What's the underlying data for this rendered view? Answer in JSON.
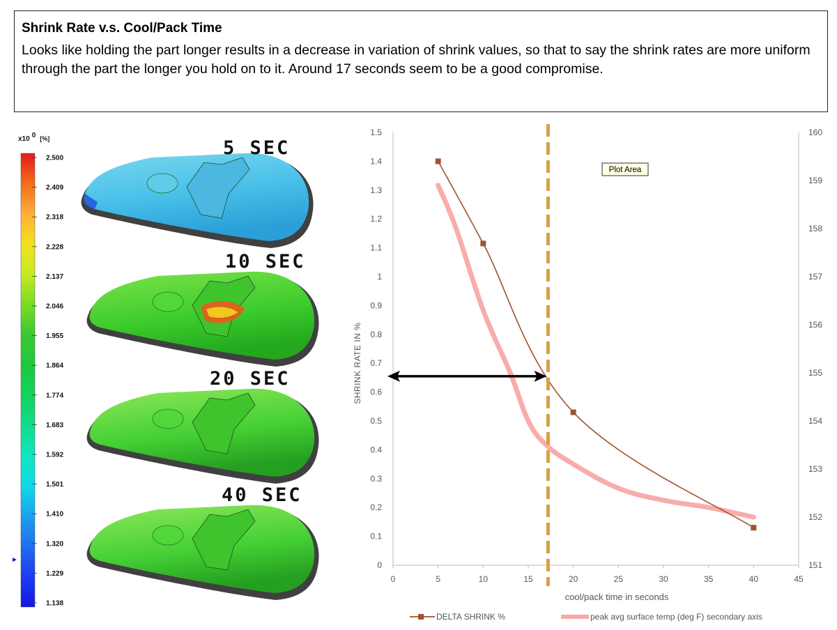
{
  "header": {
    "title": "Shrink Rate v.s. Cool/Pack Time",
    "body": "Looks like holding the part longer results in a decrease in variation of shrink values, so that to say the shrink rates are more uniform through the part the longer you hold on to it. Around 17 seconds seem to be a good compromise."
  },
  "legend_scale": {
    "unit_prefix": "x10",
    "unit_exponent": "0",
    "unit": "[%]",
    "ticks": [
      "2.500",
      "2.409",
      "2.318",
      "2.228",
      "2.137",
      "2.046",
      "1.955",
      "1.864",
      "1.774",
      "1.683",
      "1.592",
      "1.501",
      "1.410",
      "1.320",
      "1.229",
      "1.138"
    ],
    "colors": [
      "#e31a1c",
      "#f46d1a",
      "#fdae3a",
      "#f4e01a",
      "#c6ea24",
      "#78dc24",
      "#3cc832",
      "#1ec83c",
      "#14d25a",
      "#10dc8c",
      "#10e6c0",
      "#10d8e8",
      "#1ea0ee",
      "#1e6ef0",
      "#1e3cf0",
      "#1414e8"
    ],
    "marker_value": "1.27"
  },
  "renders": [
    {
      "label": "5 SEC",
      "tone": "blue"
    },
    {
      "label": "10 SEC",
      "tone": "hot"
    },
    {
      "label": "20 SEC",
      "tone": "green"
    },
    {
      "label": "40 SEC",
      "tone": "green"
    }
  ],
  "chart_data": {
    "type": "line",
    "xlabel": "cool/pack time in seconds",
    "ylabel": "SHRINK RATE IN %",
    "xlim": [
      0,
      45
    ],
    "ylim": [
      0,
      1.5
    ],
    "y2lim": [
      151,
      160
    ],
    "xticks": [
      0,
      5,
      10,
      15,
      20,
      25,
      30,
      35,
      40,
      45
    ],
    "yticks": [
      0,
      0.1,
      0.2,
      0.3,
      0.4,
      0.5,
      0.6,
      0.7,
      0.8,
      0.9,
      1,
      1.1,
      1.2,
      1.3,
      1.4,
      1.5
    ],
    "y2ticks": [
      151,
      152,
      153,
      154,
      155,
      156,
      157,
      158,
      159,
      160
    ],
    "series": [
      {
        "name": "DELTA SHRINK %",
        "axis": "primary",
        "color": "#a0522d",
        "marker": "square",
        "x": [
          5,
          10,
          20,
          40
        ],
        "values": [
          1.4,
          1.115,
          0.53,
          0.13
        ]
      },
      {
        "name": "peak avg surface temp (deg F) secondary axis",
        "axis": "secondary",
        "color": "#f9a8a8",
        "marker": "none",
        "x": [
          5,
          7,
          10,
          13,
          15,
          17,
          20,
          25,
          30,
          35,
          40
        ],
        "values": [
          158.9,
          158.0,
          156.3,
          155.0,
          154.0,
          153.5,
          153.1,
          152.6,
          152.35,
          152.2,
          152.0
        ]
      }
    ],
    "annotations": {
      "vline_x": 17.2,
      "vline_color": "#daa040",
      "arrow_y": 0.655,
      "arrow_x_range": [
        0,
        17.2
      ],
      "plot_area_label": "Plot Area"
    },
    "legend_position": "bottom"
  }
}
